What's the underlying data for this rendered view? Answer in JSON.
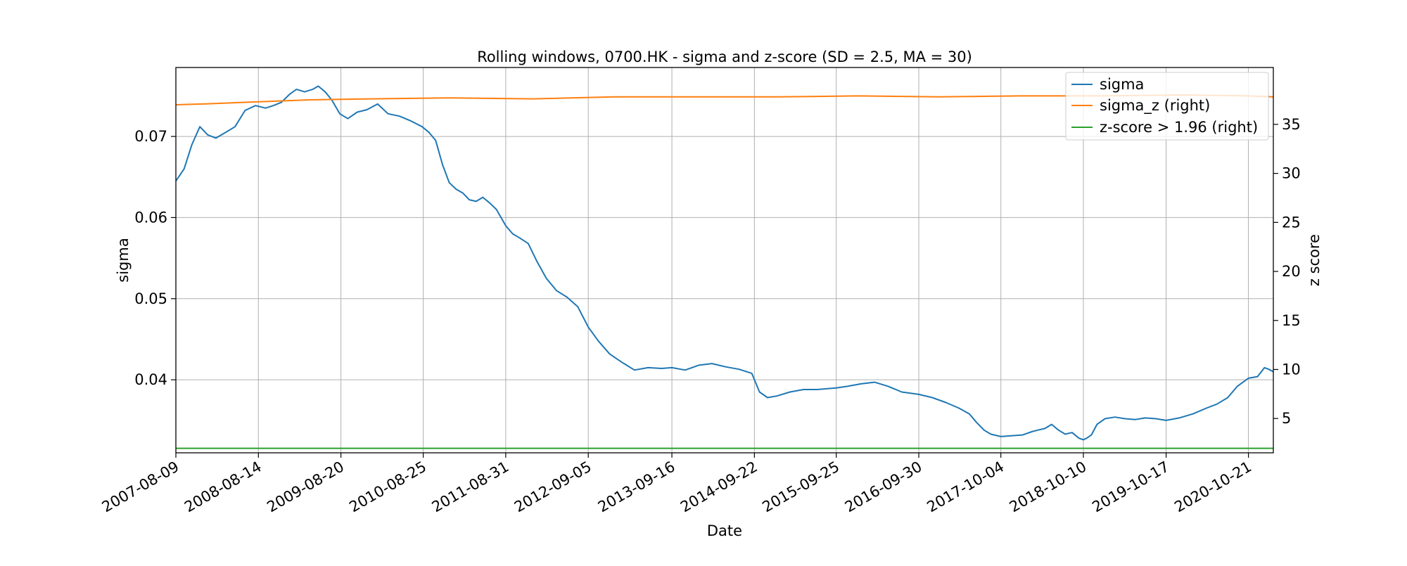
{
  "chart_data": {
    "type": "line",
    "title": "Rolling windows, 0700.HK - sigma and z-score (SD = 2.5, MA = 30)",
    "xlabel": "Date",
    "ylabel": "sigma",
    "ylabel_right": "z score",
    "xlim": [
      "2007-08-09",
      "2021-02-10"
    ],
    "ylim": [
      0.031,
      0.0785
    ],
    "ylim_right": [
      1.5,
      40.8
    ],
    "x_ticks": [
      "2007-08-09",
      "2008-08-14",
      "2009-08-20",
      "2010-08-25",
      "2011-08-31",
      "2012-09-05",
      "2013-09-16",
      "2014-09-22",
      "2015-09-25",
      "2016-09-30",
      "2017-10-04",
      "2018-10-10",
      "2019-10-17",
      "2020-10-21"
    ],
    "y_ticks": [
      0.04,
      0.05,
      0.06,
      0.07
    ],
    "y_ticks_right": [
      5,
      10,
      15,
      20,
      25,
      30,
      35
    ],
    "grid": true,
    "legend_position": "top-right",
    "series": [
      {
        "name": "sigma",
        "axis": "left",
        "color": "#1f77b4",
        "x": [
          "2007-08-09",
          "2007-09-15",
          "2007-10-20",
          "2007-11-25",
          "2007-12-30",
          "2008-02-05",
          "2008-03-20",
          "2008-05-01",
          "2008-06-15",
          "2008-08-01",
          "2008-09-15",
          "2008-10-20",
          "2008-11-25",
          "2009-01-01",
          "2009-02-01",
          "2009-03-10",
          "2009-04-15",
          "2009-05-10",
          "2009-06-10",
          "2009-07-10",
          "2009-08-15",
          "2009-09-20",
          "2009-11-01",
          "2009-12-15",
          "2010-02-01",
          "2010-03-20",
          "2010-05-10",
          "2010-07-01",
          "2010-08-20",
          "2010-09-20",
          "2010-10-20",
          "2010-11-20",
          "2010-12-20",
          "2011-01-20",
          "2011-02-20",
          "2011-03-20",
          "2011-04-20",
          "2011-05-20",
          "2011-06-20",
          "2011-07-20",
          "2011-08-31",
          "2011-10-01",
          "2011-11-01",
          "2011-12-10",
          "2012-01-20",
          "2012-03-01",
          "2012-04-15",
          "2012-06-01",
          "2012-07-20",
          "2012-09-05",
          "2012-10-20",
          "2012-12-10",
          "2013-02-01",
          "2013-04-01",
          "2013-06-01",
          "2013-08-01",
          "2013-09-16",
          "2013-11-15",
          "2014-01-15",
          "2014-03-15",
          "2014-05-15",
          "2014-07-15",
          "2014-09-10",
          "2014-10-15",
          "2014-11-20",
          "2015-01-01",
          "2015-03-01",
          "2015-05-01",
          "2015-07-01",
          "2015-09-25",
          "2015-11-15",
          "2016-01-15",
          "2016-03-15",
          "2016-05-15",
          "2016-07-15",
          "2016-09-30",
          "2016-11-30",
          "2017-01-30",
          "2017-03-30",
          "2017-05-15",
          "2017-06-15",
          "2017-07-20",
          "2017-08-20",
          "2017-10-04",
          "2017-11-20",
          "2018-01-10",
          "2018-02-20",
          "2018-03-20",
          "2018-04-20",
          "2018-05-20",
          "2018-06-20",
          "2018-07-20",
          "2018-08-20",
          "2018-09-20",
          "2018-10-10",
          "2018-10-25",
          "2018-11-15",
          "2018-12-10",
          "2019-01-15",
          "2019-03-01",
          "2019-04-15",
          "2019-06-01",
          "2019-07-15",
          "2019-09-01",
          "2019-10-17",
          "2019-12-15",
          "2020-02-15",
          "2020-04-15",
          "2020-06-01",
          "2020-07-20",
          "2020-09-01",
          "2020-10-21",
          "2020-12-01",
          "2021-01-01",
          "2021-01-20",
          "2021-02-10"
        ],
        "y": [
          0.0645,
          0.066,
          0.069,
          0.0712,
          0.0702,
          0.0698,
          0.0705,
          0.0712,
          0.0732,
          0.0738,
          0.0735,
          0.0738,
          0.0742,
          0.0752,
          0.0758,
          0.0755,
          0.0758,
          0.0762,
          0.0755,
          0.0745,
          0.0728,
          0.0722,
          0.073,
          0.0733,
          0.074,
          0.0728,
          0.0725,
          0.0719,
          0.0712,
          0.0705,
          0.0695,
          0.0665,
          0.0643,
          0.0635,
          0.063,
          0.0622,
          0.062,
          0.0625,
          0.0618,
          0.061,
          0.059,
          0.058,
          0.0575,
          0.0568,
          0.0545,
          0.0525,
          0.051,
          0.0502,
          0.049,
          0.0465,
          0.0448,
          0.0432,
          0.0422,
          0.0412,
          0.0415,
          0.0414,
          0.0415,
          0.0412,
          0.0418,
          0.042,
          0.0416,
          0.0413,
          0.0408,
          0.0385,
          0.0378,
          0.038,
          0.0385,
          0.0388,
          0.0388,
          0.039,
          0.0392,
          0.0395,
          0.0397,
          0.0392,
          0.0385,
          0.0382,
          0.0378,
          0.0372,
          0.0365,
          0.0358,
          0.0348,
          0.0338,
          0.0333,
          0.033,
          0.0331,
          0.0332,
          0.0336,
          0.0338,
          0.034,
          0.0345,
          0.0338,
          0.0333,
          0.0335,
          0.0328,
          0.0326,
          0.0328,
          0.0332,
          0.0345,
          0.0352,
          0.0354,
          0.0352,
          0.0351,
          0.0353,
          0.0352,
          0.035,
          0.0353,
          0.0358,
          0.0365,
          0.037,
          0.0378,
          0.0392,
          0.0402,
          0.0404,
          0.0415,
          0.0413,
          0.041
        ]
      },
      {
        "name": "sigma_z (right)",
        "axis": "right",
        "color": "#ff7f0e",
        "x": [
          "2007-08-09",
          "2008-01-01",
          "2008-08-14",
          "2009-04-01",
          "2010-01-01",
          "2011-01-01",
          "2012-01-01",
          "2013-01-01",
          "2014-01-01",
          "2015-01-01",
          "2016-01-01",
          "2017-01-01",
          "2018-01-01",
          "2019-01-01",
          "2020-01-01",
          "2020-10-21",
          "2021-02-10"
        ],
        "y": [
          37.0,
          37.1,
          37.3,
          37.5,
          37.6,
          37.7,
          37.6,
          37.8,
          37.8,
          37.8,
          37.9,
          37.8,
          37.9,
          37.9,
          38.0,
          37.9,
          37.8
        ]
      },
      {
        "name": "z-score > 1.96 (right)",
        "axis": "right",
        "color": "#2ca02c",
        "x": [
          "2007-08-09",
          "2021-02-10"
        ],
        "y": [
          1.96,
          1.96
        ]
      }
    ]
  }
}
